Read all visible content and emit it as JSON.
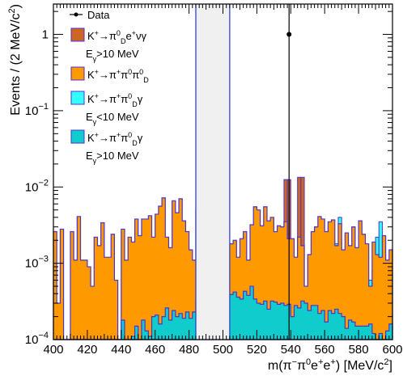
{
  "chart_data": {
    "type": "histogram",
    "scale_y": "log",
    "xlim": [
      400,
      600
    ],
    "ylim": [
      0.0001,
      2.5
    ],
    "bin_width": 2,
    "xlabel_html": "m(π<tspan baseline-shift='super' font-size='11'>−</tspan>π<tspan baseline-shift='super' font-size='11'>0</tspan>e<tspan baseline-shift='super' font-size='11'>+</tspan>e<tspan baseline-shift='super' font-size='11'>+</tspan>) [MeV/c<tspan baseline-shift='super' font-size='11'>2</tspan>]",
    "ylabel_html": "Events / (2 MeV/c<tspan baseline-shift='super' font-size='11'>2</tspan>)",
    "x_ticks": [
      "400",
      "420",
      "440",
      "460",
      "480",
      "500",
      "520",
      "540",
      "560",
      "580",
      "600"
    ],
    "y_ticks": [
      {
        "value": 0.0001,
        "base": "10",
        "exp": "−4"
      },
      {
        "value": 0.001,
        "base": "10",
        "exp": "−3"
      },
      {
        "value": 0.01,
        "base": "10",
        "exp": "−2"
      },
      {
        "value": 0.1,
        "base": "10",
        "exp": "−1"
      },
      {
        "value": 1,
        "base": "1",
        "exp": ""
      }
    ],
    "signal_window": [
      484,
      504
    ],
    "colors": {
      "orange": "#ff9900",
      "cyan_light": "#33ffff",
      "cyan_dark": "#11cccc",
      "brown": "#cc6622",
      "purple": "#4c33cc",
      "window_line": "#2233dd",
      "window_fill": "#f0f0f0",
      "data": "#000000"
    },
    "series": [
      {
        "name": "K+→π0_D e+ ν γ, Eγ>10 MeV",
        "color": "#cc6622",
        "bins": [
          [
            536,
            0.0125
          ],
          [
            538,
            0.0125
          ],
          [
            544,
            0.0134
          ],
          [
            546,
            0.0134
          ]
        ]
      },
      {
        "name": "K+→π+π0π0_D (stacked total)",
        "color": "#ff9900",
        "values": [
          0.0026,
          0.0003,
          0.0028,
          0.0001,
          0.0001,
          0.0026,
          0.0011,
          0.0041,
          0.0011,
          0.0011,
          0.0009,
          0.0005,
          0.0022,
          0.0017,
          0.0034,
          0.0012,
          0.0012,
          0.0024,
          0.0006,
          0.0001,
          0.0028,
          0.0011,
          0.0022,
          0.0019,
          0.0038,
          0.0023,
          0.0038,
          0.0038,
          0.0042,
          0.0022,
          0.0044,
          0.0056,
          0.0072,
          0.0022,
          0.0016,
          0.0066,
          0.0046,
          0.007,
          0.0036,
          0.0026,
          0.0015,
          0.0011,
          0.005,
          0.0022,
          0.0046,
          0.0031,
          0.003,
          0.0048,
          0.003,
          0.0018,
          0.003,
          0.003,
          0.0018,
          0.002,
          0.0012,
          0.0021,
          0.0026,
          0.0011,
          0.0032,
          0.0055,
          0.005,
          0.0031,
          0.0055,
          0.0036,
          0.004,
          0.0026,
          0.0031,
          0.003,
          0.0035,
          0.0021,
          0.0021,
          0.0012,
          0.0022,
          0.0017,
          0.0005,
          0.0013,
          0.0026,
          0.003,
          0.0041,
          0.0038,
          0.0026,
          0.0035,
          0.0037,
          0.0017,
          0.0033,
          0.0015,
          0.0025,
          0.0017,
          0.003,
          0.0016,
          0.0036,
          0.0024,
          0.0018,
          0.0005,
          0.0019,
          0.0013,
          0.0012,
          0.0023,
          0.0011,
          0.0015
        ]
      },
      {
        "name": "K+→π+π0_D γ, Eγ<10 MeV (stacked top)",
        "color": "#33ffff",
        "bins": [
          [
            550,
            0.0012
          ],
          [
            556,
            0.0025
          ],
          [
            558,
            0.0018
          ],
          [
            560,
            0.0015
          ],
          [
            562,
            0.003
          ],
          [
            564,
            0.002
          ],
          [
            566,
            0.0018
          ],
          [
            568,
            0.004
          ],
          [
            576,
            0.0011
          ],
          [
            578,
            0.0008
          ],
          [
            580,
            0.0012
          ],
          [
            582,
            0.0008
          ],
          [
            584,
            0.0005
          ],
          [
            586,
            0.0006
          ],
          [
            588,
            0.0008
          ],
          [
            590,
            0.0022
          ],
          [
            592,
            0.0035
          ],
          [
            594,
            0.0013
          ]
        ]
      },
      {
        "name": "K+→π+π0_D γ, Eγ>10 MeV",
        "color": "#11cccc",
        "values": [
          0,
          0,
          0,
          0,
          0,
          0,
          0,
          0,
          0,
          0,
          0,
          0,
          0,
          0,
          0,
          0,
          0,
          0,
          0,
          0,
          0.00018,
          0,
          0,
          0.00011,
          0.00015,
          0,
          0.00018,
          0.00013,
          0.00011,
          0.0002,
          0.00021,
          0.00016,
          0.0002,
          0.00026,
          0.00018,
          0.00024,
          0.0002,
          0.00022,
          0.00019,
          0.00023,
          0.00019,
          0.00023,
          0.00033,
          0.00028,
          0.00027,
          0.00024,
          0.00029,
          0.00034,
          0.00026,
          0.00034,
          0.00032,
          0.00041,
          0.00039,
          0.00042,
          0.00036,
          0.00034,
          0.00043,
          0.00038,
          0.0005,
          0.00034,
          0.0003,
          0.00029,
          0.00032,
          0.00025,
          0.00032,
          0.00031,
          0.00029,
          0.0003,
          0.00028,
          0.00029,
          0.0002,
          0.00028,
          0.00026,
          0.00032,
          0.0003,
          0.00024,
          0.00028,
          0.00028,
          0.00022,
          0.00024,
          0.00017,
          0.00024,
          0.00022,
          0.00025,
          0.00022,
          0.0002,
          0.00014,
          0.00018,
          0.00017,
          0.00015,
          0.00015,
          0.00015,
          0.00015,
          0.00016,
          0.00012,
          0.0001,
          0.00012,
          0.0001,
          0.00013,
          0.00016
        ]
      }
    ],
    "data_points": [
      {
        "x": 539,
        "y": 1.0,
        "err_low": 0.0001,
        "err_high": 2.5
      }
    ],
    "legend": {
      "position": "top-left",
      "entries": [
        {
          "kind": "marker",
          "label_html": "Data"
        },
        {
          "kind": "box",
          "color": "#cc6622",
          "label_html": "K<tspan baseline-shift='super' font-size='9'>+</tspan>→π<tspan baseline-shift='super' font-size='9'>0</tspan><tspan baseline-shift='sub' font-size='9'>D</tspan>e<tspan baseline-shift='super' font-size='9'>+</tspan>νγ",
          "sub_html": "E<tspan baseline-shift='sub' font-size='9'>γ</tspan>>10 MeV"
        },
        {
          "kind": "box",
          "color": "#ff9900",
          "label_html": "K<tspan baseline-shift='super' font-size='9'>+</tspan>→π<tspan baseline-shift='super' font-size='9'>+</tspan>π<tspan baseline-shift='super' font-size='9'>0</tspan>π<tspan baseline-shift='super' font-size='9'>0</tspan><tspan baseline-shift='sub' font-size='9'>D</tspan>",
          "sub_html": ""
        },
        {
          "kind": "box",
          "color": "#33ffff",
          "label_html": "K<tspan baseline-shift='super' font-size='9'>+</tspan>→π<tspan baseline-shift='super' font-size='9'>+</tspan>π<tspan baseline-shift='super' font-size='9'>0</tspan><tspan baseline-shift='sub' font-size='9'>D</tspan>γ",
          "sub_html": "E<tspan baseline-shift='sub' font-size='9'>γ</tspan><10 MeV"
        },
        {
          "kind": "box",
          "color": "#11cccc",
          "label_html": "K<tspan baseline-shift='super' font-size='9'>+</tspan>→π<tspan baseline-shift='super' font-size='9'>+</tspan>π<tspan baseline-shift='super' font-size='9'>0</tspan><tspan baseline-shift='sub' font-size='9'>D</tspan>γ",
          "sub_html": "E<tspan baseline-shift='sub' font-size='9'>γ</tspan>>10 MeV"
        }
      ]
    }
  }
}
